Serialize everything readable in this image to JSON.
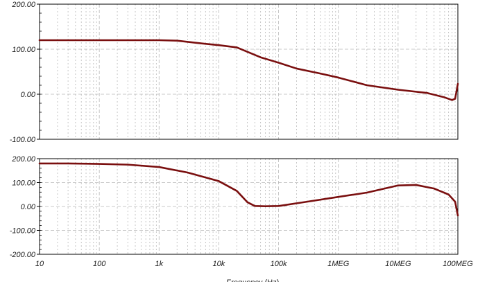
{
  "chart_data": [
    {
      "type": "line",
      "title": "",
      "xlabel": "",
      "ylabel": "",
      "xscale": "log",
      "xlim": [
        10,
        100000000
      ],
      "ylim": [
        -100,
        200
      ],
      "yticks": [
        "200.00",
        "100.00",
        "0.00",
        "-100.00"
      ],
      "yticks_values": [
        200,
        100,
        0,
        -100
      ],
      "grid": true,
      "colors": {
        "line": "#7a0f0f",
        "grid": "#b8b8b8",
        "axis": "#000000"
      },
      "series": [
        {
          "x": [
            10,
            100,
            1000,
            2000,
            5000,
            10000,
            20000,
            50000,
            100000,
            200000,
            500000,
            1000000,
            3000000,
            10000000,
            30000000,
            60000000,
            80000000,
            90000000,
            100000000
          ],
          "values": [
            120,
            120,
            120,
            119,
            113,
            109,
            104,
            82,
            70,
            57,
            46,
            37,
            20,
            10,
            3,
            -7,
            -13,
            -10,
            23
          ]
        }
      ]
    },
    {
      "type": "line",
      "title": "",
      "xlabel": "Frequency (Hz)",
      "ylabel": "",
      "xscale": "log",
      "xlim": [
        10,
        100000000
      ],
      "ylim": [
        -200,
        200
      ],
      "xticks": [
        "10",
        "100",
        "1k",
        "10k",
        "100k",
        "1MEG",
        "10MEG",
        "100MEG"
      ],
      "xticks_values": [
        10,
        100,
        1000,
        10000,
        100000,
        1000000,
        10000000,
        100000000
      ],
      "yticks": [
        "200.00",
        "100.00",
        "0.00",
        "-100.00",
        "-200.00"
      ],
      "yticks_values": [
        200,
        100,
        0,
        -100,
        -200
      ],
      "grid": true,
      "colors": {
        "line": "#7a0f0f",
        "grid": "#b8b8b8",
        "axis": "#000000"
      },
      "series": [
        {
          "x": [
            10,
            30,
            100,
            300,
            1000,
            3000,
            10000,
            20000,
            30000,
            40000,
            60000,
            100000,
            300000,
            1000000,
            3000000,
            10000000,
            20000000,
            40000000,
            70000000,
            90000000,
            100000000
          ],
          "values": [
            180,
            180,
            178,
            175,
            165,
            142,
            106,
            65,
            18,
            2,
            1,
            2,
            20,
            40,
            58,
            88,
            90,
            75,
            50,
            20,
            -38
          ]
        }
      ]
    }
  ]
}
